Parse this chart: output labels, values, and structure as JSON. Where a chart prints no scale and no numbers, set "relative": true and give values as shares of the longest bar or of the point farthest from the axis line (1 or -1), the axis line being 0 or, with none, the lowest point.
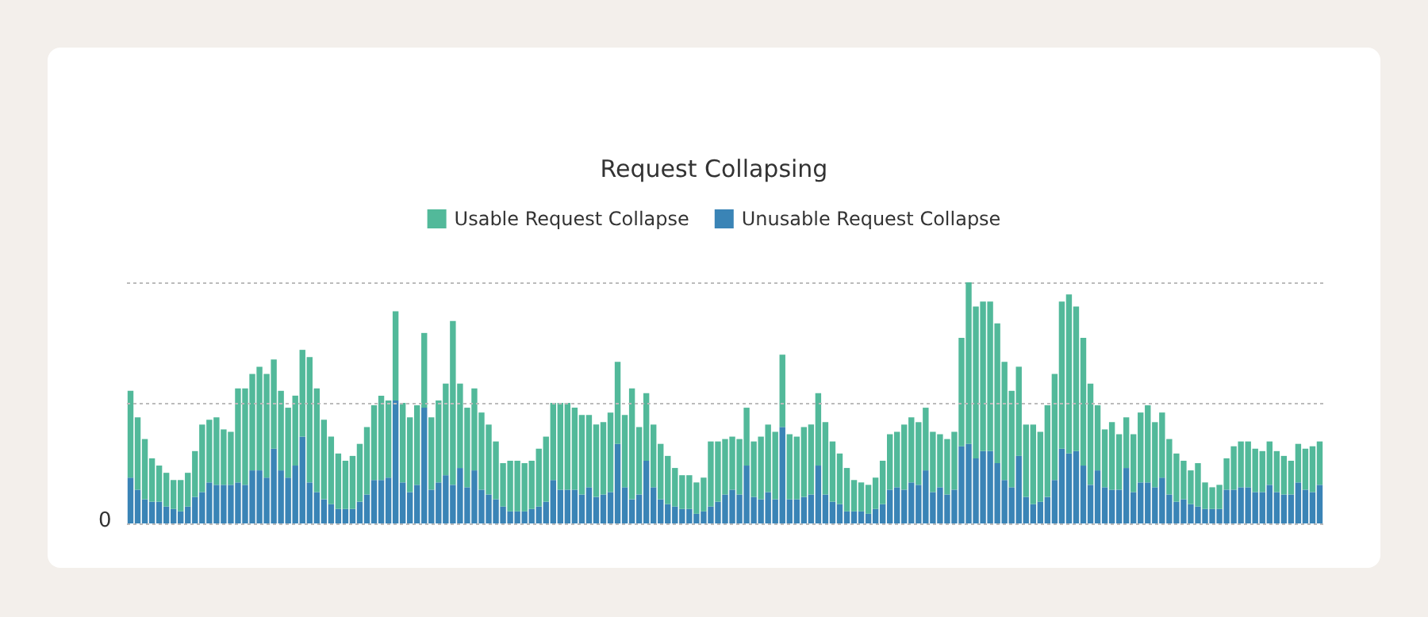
{
  "chart_data": {
    "type": "bar",
    "title": "Request Collapsing",
    "stacked": true,
    "relative": true,
    "grid": "y",
    "legend": "top",
    "ref_lines": [
      {
        "axis": "y",
        "value": 0.5,
        "color": "#bbbbbb",
        "line_style": "dotted"
      }
    ],
    "annotations": [
      "0"
    ],
    "categories": [
      null,
      null,
      null,
      null,
      null,
      null,
      null,
      null,
      null,
      null,
      null,
      null,
      null,
      null,
      null,
      null,
      null,
      null,
      null,
      null,
      null,
      null,
      null,
      null,
      null,
      null,
      null,
      null,
      null,
      null,
      null,
      null,
      null,
      null,
      null,
      null,
      null,
      null,
      null,
      null,
      null,
      null,
      null,
      null,
      null,
      null,
      null,
      null,
      null,
      null,
      null,
      null,
      null,
      null,
      null,
      null,
      null,
      null,
      null,
      null,
      null,
      null,
      null,
      null,
      null,
      null,
      null,
      null,
      null,
      null,
      null,
      null,
      null,
      null,
      null,
      null,
      null,
      null,
      null,
      null,
      null,
      null,
      null,
      null,
      null,
      null,
      null,
      null,
      null,
      null,
      null,
      null,
      null,
      null,
      null,
      null,
      null,
      null,
      null,
      null,
      null,
      null,
      null,
      null,
      null,
      null,
      null,
      null,
      null,
      null,
      null,
      null,
      null,
      null,
      null,
      null,
      null,
      null,
      null,
      null,
      null,
      null,
      null,
      null,
      null,
      null,
      null,
      null,
      null,
      null,
      null,
      null,
      null,
      null,
      null,
      null,
      null,
      null,
      null,
      null,
      null,
      null,
      null,
      null,
      null,
      null,
      null,
      null,
      null,
      null,
      null,
      null,
      null,
      null,
      null,
      null,
      null,
      null,
      null,
      null,
      null,
      null,
      null,
      null,
      null,
      null,
      null
    ],
    "series": [
      {
        "name": "Unusable Request Collapse",
        "color": "#3a84b6",
        "values": [
          0.19,
          0.14,
          0.1,
          0.09,
          0.09,
          0.07,
          0.06,
          0.05,
          0.07,
          0.11,
          0.13,
          0.17,
          0.16,
          0.16,
          0.16,
          0.17,
          0.16,
          0.22,
          0.22,
          0.19,
          0.31,
          0.22,
          0.19,
          0.24,
          0.36,
          0.17,
          0.13,
          0.1,
          0.08,
          0.06,
          0.06,
          0.06,
          0.09,
          0.12,
          0.18,
          0.18,
          0.19,
          0.51,
          0.17,
          0.13,
          0.16,
          0.48,
          0.14,
          0.17,
          0.2,
          0.16,
          0.23,
          0.15,
          0.22,
          0.14,
          0.12,
          0.1,
          0.07,
          0.05,
          0.05,
          0.05,
          0.06,
          0.07,
          0.09,
          0.18,
          0.14,
          0.14,
          0.14,
          0.12,
          0.15,
          0.11,
          0.12,
          0.13,
          0.33,
          0.15,
          0.1,
          0.12,
          0.26,
          0.15,
          0.1,
          0.08,
          0.07,
          0.06,
          0.06,
          0.04,
          0.05,
          0.07,
          0.09,
          0.12,
          0.14,
          0.12,
          0.24,
          0.11,
          0.1,
          0.13,
          0.1,
          0.4,
          0.1,
          0.1,
          0.11,
          0.12,
          0.24,
          0.12,
          0.09,
          0.08,
          0.05,
          0.05,
          0.05,
          0.04,
          0.06,
          0.08,
          0.14,
          0.15,
          0.14,
          0.17,
          0.16,
          0.22,
          0.13,
          0.15,
          0.12,
          0.14,
          0.32,
          0.33,
          0.27,
          0.3,
          0.3,
          0.25,
          0.18,
          0.15,
          0.28,
          0.11,
          0.08,
          0.09,
          0.11,
          0.18,
          0.31,
          0.29,
          0.3,
          0.24,
          0.16,
          0.22,
          0.15,
          0.14,
          0.14,
          0.23,
          0.13,
          0.17,
          0.17,
          0.15,
          0.19,
          0.12,
          0.09,
          0.1,
          0.08,
          0.07,
          0.06,
          0.06,
          0.06,
          0.14,
          0.14,
          0.15,
          0.15,
          0.13,
          0.13,
          0.16,
          0.13,
          0.12,
          0.12,
          0.17,
          0.14,
          0.13,
          0.16
        ]
      },
      {
        "name": "Usable Request Collapse",
        "color": "#52b99a",
        "values": [
          0.36,
          0.3,
          0.25,
          0.18,
          0.15,
          0.14,
          0.12,
          0.13,
          0.14,
          0.19,
          0.28,
          0.26,
          0.28,
          0.23,
          0.22,
          0.39,
          0.4,
          0.4,
          0.43,
          0.43,
          0.37,
          0.33,
          0.29,
          0.29,
          0.36,
          0.52,
          0.43,
          0.33,
          0.28,
          0.23,
          0.2,
          0.22,
          0.24,
          0.28,
          0.31,
          0.35,
          0.32,
          0.37,
          0.33,
          0.31,
          0.33,
          0.31,
          0.3,
          0.34,
          0.38,
          0.68,
          0.35,
          0.33,
          0.34,
          0.32,
          0.29,
          0.24,
          0.18,
          0.21,
          0.21,
          0.2,
          0.2,
          0.24,
          0.27,
          0.32,
          0.36,
          0.36,
          0.34,
          0.33,
          0.3,
          0.3,
          0.3,
          0.33,
          0.34,
          0.3,
          0.46,
          0.28,
          0.28,
          0.26,
          0.23,
          0.2,
          0.16,
          0.14,
          0.14,
          0.13,
          0.14,
          0.27,
          0.25,
          0.23,
          0.22,
          0.23,
          0.24,
          0.23,
          0.26,
          0.28,
          0.28,
          0.3,
          0.27,
          0.26,
          0.29,
          0.29,
          0.3,
          0.3,
          0.25,
          0.21,
          0.18,
          0.13,
          0.12,
          0.12,
          0.13,
          0.18,
          0.23,
          0.23,
          0.27,
          0.27,
          0.26,
          0.26,
          0.25,
          0.22,
          0.23,
          0.24,
          0.45,
          0.67,
          0.63,
          0.62,
          0.62,
          0.58,
          0.49,
          0.4,
          0.37,
          0.3,
          0.33,
          0.29,
          0.38,
          0.44,
          0.61,
          0.66,
          0.6,
          0.53,
          0.42,
          0.27,
          0.24,
          0.28,
          0.23,
          0.21,
          0.24,
          0.29,
          0.32,
          0.27,
          0.27,
          0.23,
          0.2,
          0.16,
          0.14,
          0.18,
          0.11,
          0.09,
          0.1,
          0.13,
          0.18,
          0.19,
          0.19,
          0.18,
          0.17,
          0.18,
          0.17,
          0.16,
          0.14,
          0.16,
          0.17,
          0.19,
          0.18
        ]
      }
    ]
  }
}
